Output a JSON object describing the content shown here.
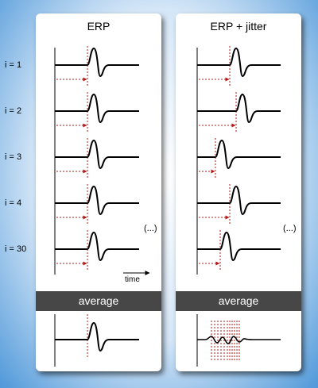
{
  "panels": {
    "left_title": "ERP",
    "right_title": "ERP + jitter",
    "average_label": "average"
  },
  "trial_labels": [
    "i = 1",
    "i = 2",
    "i = 3",
    "i = 4",
    "i = 30"
  ],
  "ellipsis": "(...)",
  "time_label": "time",
  "colors": {
    "background_edge": "#4f98d9",
    "average_bar": "#474747",
    "marker": "#b01818"
  },
  "jitter_offsets": [
    0,
    8,
    -18,
    0,
    -12
  ]
}
